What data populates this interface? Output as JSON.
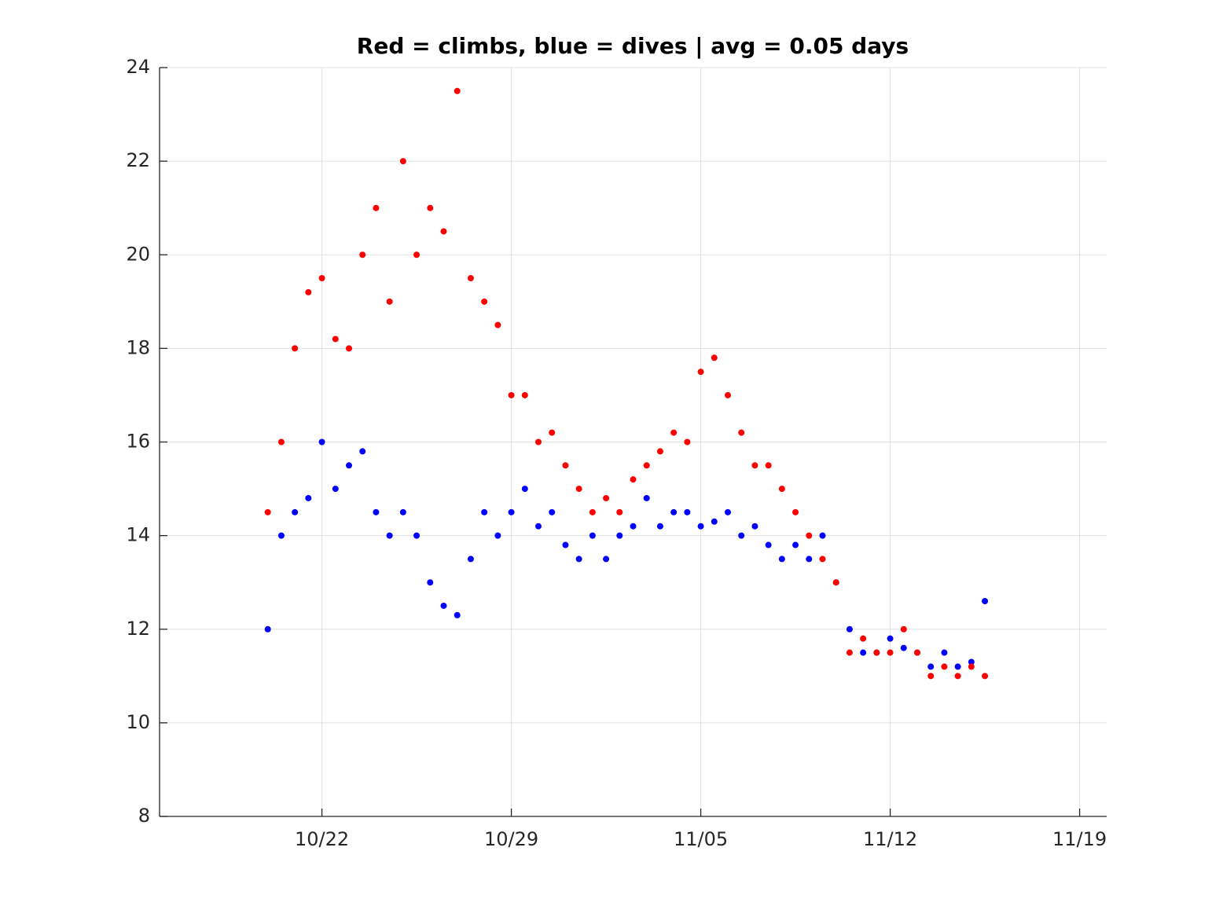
{
  "chart_data": {
    "type": "scatter",
    "title": "Red = climbs, blue = dives | avg = 0.05 days",
    "x": [
      293,
      293.5,
      294,
      294.5,
      295,
      295.5,
      296,
      296.5,
      297,
      297.5,
      298,
      298.5,
      299,
      299.5,
      300,
      300.5,
      301,
      301.5,
      302,
      302.5,
      303,
      303.5,
      304,
      304.5,
      305,
      305.5,
      306,
      306.5,
      307,
      307.5,
      308,
      308.5,
      309,
      309.5,
      310,
      310.5,
      311,
      311.5,
      312,
      312.5,
      313,
      313.5,
      314,
      314.5,
      315,
      315.5,
      316,
      316.5,
      317,
      317.5,
      318,
      318.5,
      319,
      319.5
    ],
    "series": [
      {
        "color": "#0000ff",
        "values": [
          12,
          14,
          14.5,
          14.8,
          16,
          15,
          15.5,
          15.8,
          14.5,
          14,
          14.5,
          14,
          13,
          12.5,
          12.3,
          13.5,
          14.5,
          14,
          14.5,
          15,
          14.2,
          14.5,
          13.8,
          13.5,
          14,
          13.5,
          14,
          14.2,
          14.8,
          14.2,
          14.5,
          14.5,
          14.2,
          14.3,
          14.5,
          14,
          14.2,
          13.8,
          13.5,
          13.8,
          13.5,
          14,
          13,
          12,
          11.5,
          11.5,
          11.8,
          11.6,
          11.5,
          11.2,
          11.5,
          11.2,
          11.3,
          12.6
        ]
      },
      {
        "color": "#ff0000",
        "values": [
          14.5,
          16,
          18,
          19.2,
          19.5,
          18.2,
          18,
          20,
          21,
          19,
          22,
          20,
          21,
          20.5,
          23.5,
          19.5,
          19,
          18.5,
          17,
          17,
          16,
          16.2,
          15.5,
          15,
          14.5,
          14.8,
          14.5,
          15.2,
          15.5,
          15.8,
          16.2,
          16,
          17.5,
          17.8,
          17,
          16.2,
          15.5,
          15.5,
          15,
          14.5,
          14,
          13.5,
          13,
          11.5,
          11.8,
          11.5,
          11.5,
          12,
          11.5,
          11,
          11.2,
          11,
          11.2,
          11
        ]
      }
    ],
    "xlim": [
      289,
      324
    ],
    "xticks": [
      {
        "value": 295,
        "label": "10/22"
      },
      {
        "value": 302,
        "label": "10/29"
      },
      {
        "value": 309,
        "label": "11/05"
      },
      {
        "value": 316,
        "label": "11/12"
      },
      {
        "value": 323,
        "label": "11/19"
      }
    ],
    "ylim": [
      8,
      24
    ],
    "yticks": [
      8,
      10,
      12,
      14,
      16,
      18,
      20,
      22,
      24
    ],
    "grid": true
  }
}
